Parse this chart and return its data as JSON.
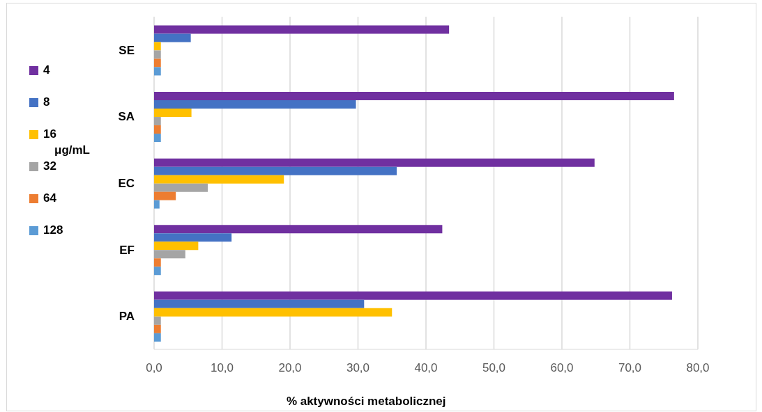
{
  "chart_data": {
    "type": "bar",
    "orientation": "horizontal",
    "categories": [
      "SE",
      "SA",
      "EC",
      "EF",
      "PA"
    ],
    "series": [
      {
        "name": "4",
        "color": "#7030a0",
        "values": [
          43.4,
          76.5,
          64.8,
          42.4,
          76.2
        ]
      },
      {
        "name": "8",
        "color": "#4472c4",
        "values": [
          5.4,
          29.7,
          35.7,
          11.4,
          30.9
        ]
      },
      {
        "name": "16",
        "color": "#ffc000",
        "values": [
          1.0,
          5.5,
          19.1,
          6.5,
          35.0
        ]
      },
      {
        "name": "32",
        "color": "#a5a5a5",
        "values": [
          1.0,
          1.0,
          7.9,
          4.6,
          1.0
        ]
      },
      {
        "name": "64",
        "color": "#ed7d31",
        "values": [
          1.0,
          1.0,
          3.2,
          1.0,
          1.0
        ]
      },
      {
        "name": "128",
        "color": "#5b9bd5",
        "values": [
          1.0,
          1.0,
          0.8,
          1.0,
          1.0
        ]
      }
    ],
    "xlabel": "% aktywności metabolicznej",
    "legend_title": "μg/mL",
    "legend": "left",
    "xlim": [
      0,
      80
    ],
    "xticks": [
      {
        "value": 0,
        "label": "0,0"
      },
      {
        "value": 10,
        "label": "10,0"
      },
      {
        "value": 20,
        "label": "20,0"
      },
      {
        "value": 30,
        "label": "30,0"
      },
      {
        "value": 40,
        "label": "40,0"
      },
      {
        "value": 50,
        "label": "50,0"
      },
      {
        "value": 60,
        "label": "60,0"
      },
      {
        "value": 70,
        "label": "70,0"
      },
      {
        "value": 80,
        "label": "80,0"
      }
    ],
    "grid": "x"
  }
}
